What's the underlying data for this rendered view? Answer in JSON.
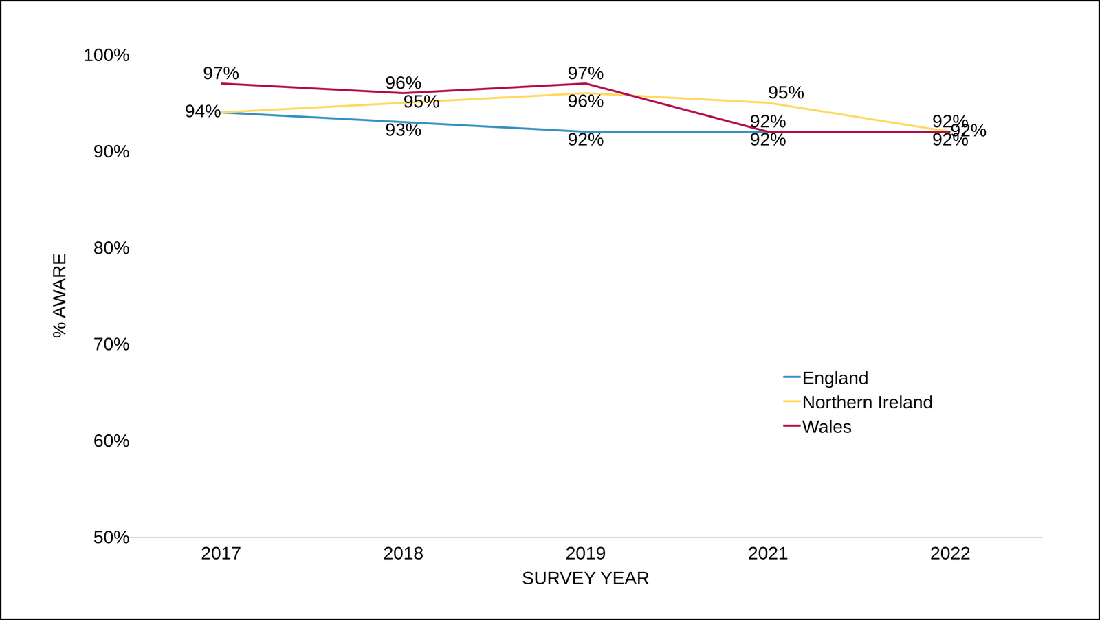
{
  "chart_data": {
    "type": "line",
    "categories": [
      "2017",
      "2018",
      "2019",
      "2021",
      "2022"
    ],
    "x_label": "SURVEY YEAR",
    "y_label": "% AWARE",
    "ylim": [
      50,
      100
    ],
    "yticks": [
      {
        "value": 50,
        "label": "50%"
      },
      {
        "value": 60,
        "label": "60%"
      },
      {
        "value": 70,
        "label": "70%"
      },
      {
        "value": 80,
        "label": "80%"
      },
      {
        "value": 90,
        "label": "90%"
      },
      {
        "value": 100,
        "label": "100%"
      }
    ],
    "grid": false,
    "legend": "right",
    "data_labels": true,
    "series": [
      {
        "name": "England",
        "color": "#3a93c3",
        "values": [
          94,
          93,
          92,
          92,
          92
        ],
        "value_labels": [
          null,
          "93%",
          "92%",
          "92%",
          "92%"
        ]
      },
      {
        "name": "Northern Ireland",
        "color": "#ffd966",
        "values": [
          94,
          95,
          96,
          95,
          92
        ],
        "value_labels": [
          "94%",
          "95%",
          "96%",
          "95%",
          "92%"
        ]
      },
      {
        "name": "Wales",
        "color": "#b5124f",
        "values": [
          97,
          96,
          97,
          92,
          92
        ],
        "value_labels": [
          "97%",
          "96%",
          "97%",
          "92%",
          "92%"
        ]
      }
    ]
  }
}
